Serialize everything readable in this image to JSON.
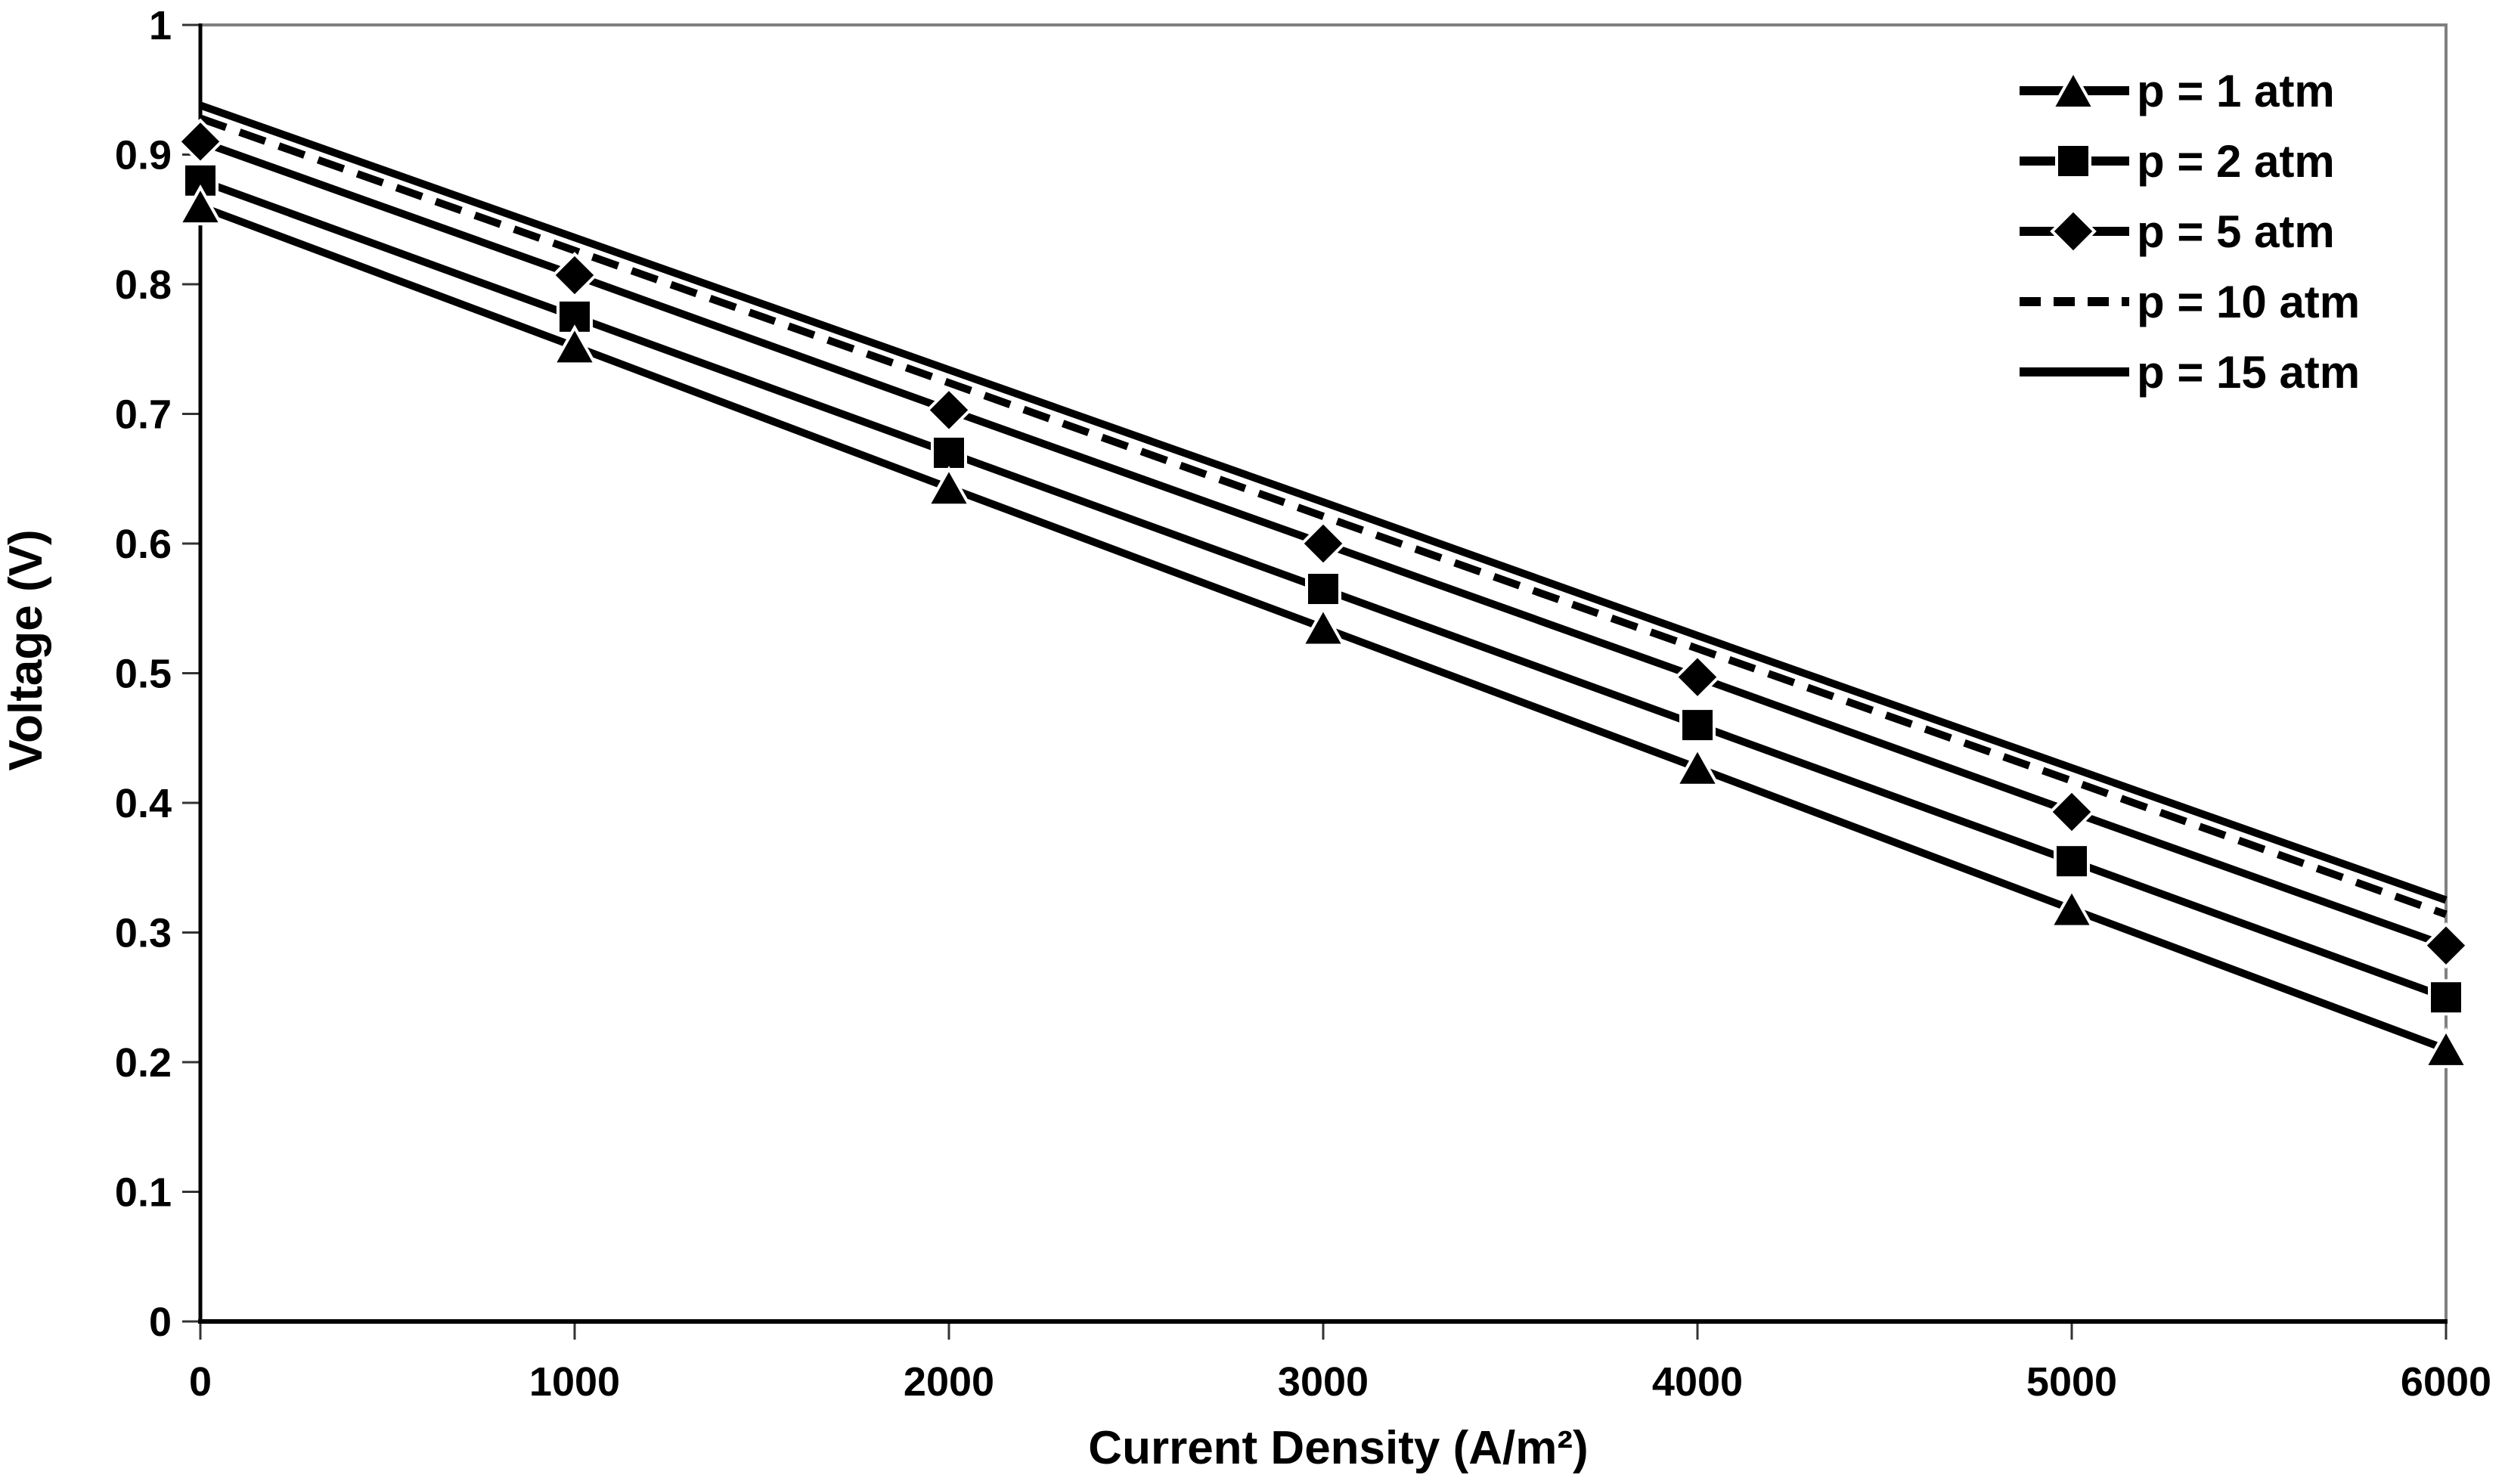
{
  "figure": {
    "background": "#ffffff",
    "axis_color": "#000000",
    "plot_border_color": "#808080",
    "tick_color": "#333333",
    "series_color": "#000000"
  },
  "chart_data": {
    "type": "line",
    "title": "",
    "xlabel": "Current Density (A/m²)",
    "ylabel": "Voltage (V)",
    "xlim": [
      0,
      6000
    ],
    "ylim": [
      0,
      1
    ],
    "grid": false,
    "legend_position": "top-right",
    "x": [
      0,
      1000,
      2000,
      3000,
      4000,
      5000,
      6000
    ],
    "xtick_labels": [
      "0",
      "1000",
      "2000",
      "3000",
      "4000",
      "5000",
      "6000"
    ],
    "yticks": [
      0,
      0.1,
      0.2,
      0.3,
      0.4,
      0.5,
      0.6,
      0.7,
      0.8,
      0.9,
      1
    ],
    "ytick_labels": [
      "0",
      "0.1",
      "0.2",
      "0.3",
      "0.4",
      "0.5",
      "0.6",
      "0.7",
      "0.8",
      "0.9",
      "1"
    ],
    "series": [
      {
        "name": "p = 1 atm",
        "marker": "triangle",
        "line_style": "solid",
        "values": [
          0.86,
          0.752,
          0.643,
          0.535,
          0.427,
          0.318,
          0.21
        ]
      },
      {
        "name": "p = 2 atm",
        "marker": "square",
        "line_style": "solid",
        "values": [
          0.88,
          0.775,
          0.67,
          0.565,
          0.46,
          0.355,
          0.25
        ]
      },
      {
        "name": "p = 5 atm",
        "marker": "diamond",
        "line_style": "solid",
        "values": [
          0.91,
          0.807,
          0.703,
          0.6,
          0.497,
          0.393,
          0.29
        ]
      },
      {
        "name": "p = 10 atm",
        "marker": "none",
        "line_style": "dashed",
        "values": [
          0.928,
          0.826,
          0.724,
          0.621,
          0.519,
          0.417,
          0.314
        ]
      },
      {
        "name": "p = 15 atm",
        "marker": "none",
        "line_style": "solid",
        "values": [
          0.938,
          0.836,
          0.734,
          0.632,
          0.529,
          0.427,
          0.325
        ]
      }
    ]
  }
}
